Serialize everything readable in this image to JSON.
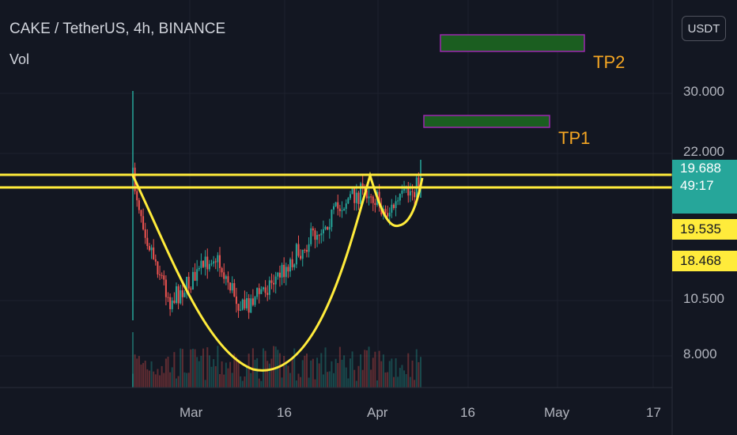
{
  "header": {
    "title": "CAKE / TetherUS, 4h, BINANCE",
    "volume_label": "Vol",
    "currency_button": "USDT"
  },
  "colors": {
    "background": "#131722",
    "up": "#26a69a",
    "down": "#ef5350",
    "pattern": "#ffeb3b",
    "target_fill": "#1b5e20",
    "target_border": "#9c27b0",
    "target_label": "#f5a623"
  },
  "chart_data": {
    "type": "candlestick",
    "title": "CAKE / TetherUS, 4h, BINANCE",
    "y_scale": "log",
    "y_ticks": [
      "30.000",
      "22.000",
      "10.500",
      "8.000"
    ],
    "x_ticks": [
      "Mar",
      "16",
      "Apr",
      "16",
      "May",
      "17"
    ],
    "grid": true,
    "price_tags": {
      "last_price": "19.688",
      "countdown": "49:17",
      "levels": [
        "19.535",
        "18.468"
      ]
    },
    "resistance_lines": [
      19.535,
      18.468
    ],
    "targets": [
      {
        "label": "TP1",
        "start": "2021-04-04",
        "end": "2021-04-24"
      },
      {
        "label": "TP2",
        "start": "2021-04-07",
        "end": "2021-05-04"
      }
    ],
    "annotations": [
      "cup and handle"
    ]
  },
  "labels": {
    "tp1": "TP1",
    "tp2": "TP2"
  }
}
